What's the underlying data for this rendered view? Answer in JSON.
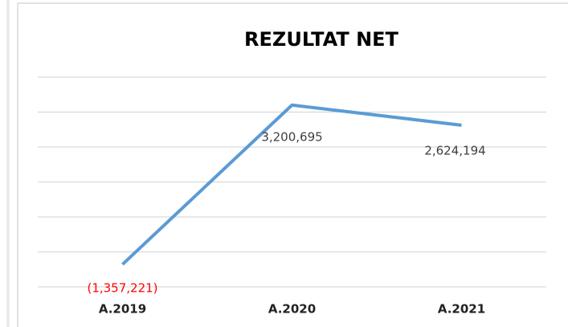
{
  "chart_data": {
    "type": "line",
    "title": "REZULTAT NET",
    "categories": [
      "A.2019",
      "A.2020",
      "A.2021"
    ],
    "values": [
      -1357221,
      3200695,
      2624194
    ],
    "value_labels": [
      "(1,357,221)",
      "3,200,695",
      "2,624,194"
    ],
    "color": "#5b9bd5",
    "negative_label_color": "#ff0000",
    "ylim": [
      -2000000,
      4000000
    ],
    "yticks": [
      -2000000,
      -1000000,
      0,
      1000000,
      2000000,
      3000000,
      4000000
    ],
    "grid": true
  }
}
